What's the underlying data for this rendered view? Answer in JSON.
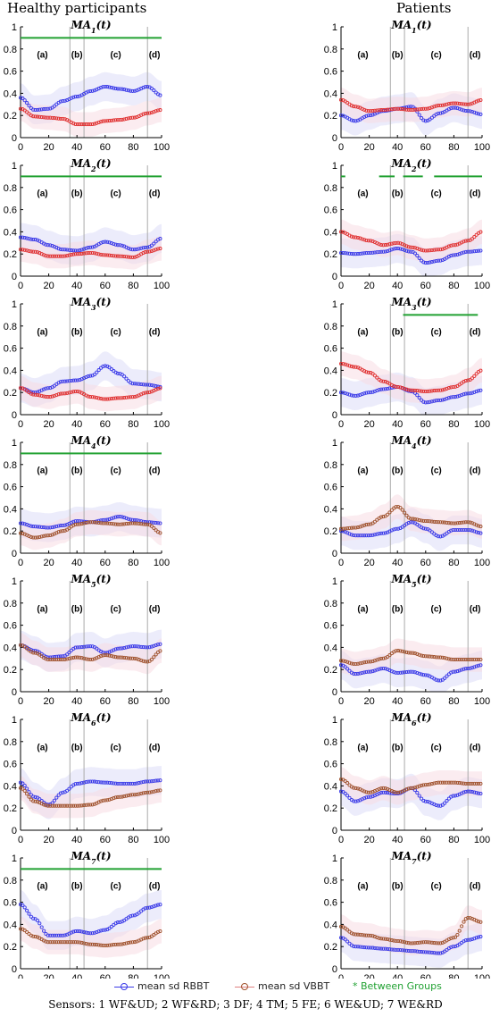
{
  "column_titles": {
    "left": "Healthy participants",
    "right": "Patients"
  },
  "legend": {
    "rbbt": "mean sd RBBT",
    "vbbt": "mean sd VBBT",
    "between": "* Between Groups"
  },
  "sensors_caption": "Sensors: 1 WF&UD; 2 WF&RD; 3 DF; 4 TM; 5 FE; 6 WE&UD; 7 WE&RD",
  "colors": {
    "rbbt": "#3a3ae8",
    "vbbt": "#e03030",
    "vbbt_brown": "#a0522d",
    "between": "#21a132",
    "grid": "#999999",
    "sd_blue": "#dcdcf8",
    "sd_red": "#f8dce4"
  },
  "chart_data": [
    {
      "type": "line",
      "panel": "MA1 healthy",
      "title": "MA",
      "sub": "1",
      "x": [
        0,
        10,
        20,
        30,
        40,
        50,
        60,
        70,
        80,
        90,
        100
      ],
      "xlim": [
        0,
        100
      ],
      "ylim": [
        0,
        1
      ],
      "xticks": [
        "0",
        "20",
        "40",
        "60",
        "80",
        "100"
      ],
      "yticks": [
        "0",
        "0.2",
        "0.4",
        "0.6",
        "0.8",
        "1"
      ],
      "phases": [
        "(a)",
        "(b)",
        "(c)",
        "(d)"
      ],
      "phase_lines": [
        35,
        45,
        90
      ],
      "between": [
        [
          0,
          100
        ]
      ],
      "vbbt_style": "red",
      "series": [
        {
          "name": "RBBT",
          "values": [
            0.36,
            0.25,
            0.26,
            0.33,
            0.37,
            0.42,
            0.46,
            0.44,
            0.42,
            0.46,
            0.38
          ]
        },
        {
          "name": "VBBT",
          "values": [
            0.26,
            0.19,
            0.18,
            0.17,
            0.12,
            0.12,
            0.15,
            0.16,
            0.18,
            0.22,
            0.25
          ]
        }
      ]
    },
    {
      "type": "line",
      "panel": "MA1 patients",
      "title": "MA",
      "sub": "1",
      "x": [
        0,
        10,
        20,
        30,
        40,
        50,
        60,
        70,
        80,
        90,
        100
      ],
      "xlim": [
        0,
        100
      ],
      "ylim": [
        0,
        1
      ],
      "xticks": [
        "0",
        "20",
        "40",
        "60",
        "80",
        "100"
      ],
      "yticks": [
        "0",
        "0.2",
        "0.4",
        "0.6",
        "0.8",
        "1"
      ],
      "phases": [
        "(a)",
        "(b)",
        "(c)",
        "(d)"
      ],
      "phase_lines": [
        35,
        45,
        90
      ],
      "between": [],
      "vbbt_style": "red",
      "series": [
        {
          "name": "RBBT",
          "values": [
            0.2,
            0.15,
            0.2,
            0.24,
            0.26,
            0.28,
            0.15,
            0.22,
            0.27,
            0.24,
            0.21
          ]
        },
        {
          "name": "VBBT",
          "values": [
            0.34,
            0.28,
            0.24,
            0.25,
            0.26,
            0.25,
            0.26,
            0.29,
            0.31,
            0.3,
            0.34
          ]
        }
      ]
    },
    {
      "type": "line",
      "panel": "MA2 healthy",
      "title": "MA",
      "sub": "2",
      "x": [
        0,
        10,
        20,
        30,
        40,
        50,
        60,
        70,
        80,
        90,
        100
      ],
      "xlim": [
        0,
        100
      ],
      "ylim": [
        0,
        1
      ],
      "xticks": [
        "0",
        "20",
        "40",
        "60",
        "80",
        "100"
      ],
      "yticks": [
        "0",
        "0.2",
        "0.4",
        "0.6",
        "0.8",
        "1"
      ],
      "phases": [
        "(a)",
        "(b)",
        "(c)",
        "(d)"
      ],
      "phase_lines": [
        35,
        45,
        90
      ],
      "between": [
        [
          0,
          100
        ]
      ],
      "vbbt_style": "red",
      "series": [
        {
          "name": "RBBT",
          "values": [
            0.35,
            0.33,
            0.28,
            0.24,
            0.23,
            0.26,
            0.31,
            0.28,
            0.24,
            0.26,
            0.34
          ]
        },
        {
          "name": "VBBT",
          "values": [
            0.24,
            0.22,
            0.18,
            0.18,
            0.2,
            0.21,
            0.19,
            0.18,
            0.17,
            0.22,
            0.25
          ]
        }
      ]
    },
    {
      "type": "line",
      "panel": "MA2 patients",
      "title": "MA",
      "sub": "2",
      "x": [
        0,
        10,
        20,
        30,
        40,
        50,
        60,
        70,
        80,
        90,
        100
      ],
      "xlim": [
        0,
        100
      ],
      "ylim": [
        0,
        1
      ],
      "xticks": [
        "0",
        "20",
        "40",
        "60",
        "80",
        "100"
      ],
      "yticks": [
        "0",
        "0.2",
        "0.4",
        "0.6",
        "0.8",
        "1"
      ],
      "phases": [
        "(a)",
        "(b)",
        "(c)",
        "(d)"
      ],
      "phase_lines": [
        35,
        45,
        90
      ],
      "between": [
        [
          0,
          3
        ],
        [
          27,
          38
        ],
        [
          44,
          58
        ],
        [
          66,
          100
        ]
      ],
      "vbbt_style": "red",
      "series": [
        {
          "name": "RBBT",
          "values": [
            0.21,
            0.2,
            0.21,
            0.22,
            0.25,
            0.22,
            0.12,
            0.14,
            0.19,
            0.22,
            0.23
          ]
        },
        {
          "name": "VBBT",
          "values": [
            0.4,
            0.35,
            0.32,
            0.28,
            0.3,
            0.26,
            0.23,
            0.24,
            0.28,
            0.32,
            0.4
          ]
        }
      ]
    },
    {
      "type": "line",
      "panel": "MA3 healthy",
      "title": "MA",
      "sub": "3",
      "x": [
        0,
        10,
        20,
        30,
        40,
        50,
        60,
        70,
        80,
        90,
        100
      ],
      "xlim": [
        0,
        100
      ],
      "ylim": [
        0,
        1
      ],
      "xticks": [
        "0",
        "20",
        "40",
        "60",
        "80",
        "100"
      ],
      "yticks": [
        "0",
        "0.2",
        "0.4",
        "0.6",
        "0.8",
        "1"
      ],
      "phases": [
        "(a)",
        "(b)",
        "(c)",
        "(d)"
      ],
      "phase_lines": [
        35,
        45,
        90
      ],
      "between": [],
      "vbbt_style": "red",
      "series": [
        {
          "name": "RBBT",
          "values": [
            0.24,
            0.2,
            0.24,
            0.3,
            0.31,
            0.35,
            0.44,
            0.37,
            0.28,
            0.27,
            0.25
          ]
        },
        {
          "name": "VBBT",
          "values": [
            0.24,
            0.18,
            0.16,
            0.19,
            0.21,
            0.16,
            0.14,
            0.15,
            0.16,
            0.2,
            0.24
          ]
        }
      ]
    },
    {
      "type": "line",
      "panel": "MA3 patients",
      "title": "MA",
      "sub": "3",
      "x": [
        0,
        10,
        20,
        30,
        40,
        50,
        60,
        70,
        80,
        90,
        100
      ],
      "xlim": [
        0,
        100
      ],
      "ylim": [
        0,
        1
      ],
      "xticks": [
        "0",
        "20",
        "40",
        "60",
        "80",
        "100"
      ],
      "yticks": [
        "0",
        "0.2",
        "0.4",
        "0.6",
        "0.8",
        "1"
      ],
      "phases": [
        "(a)",
        "(b)",
        "(c)",
        "(d)"
      ],
      "phase_lines": [
        35,
        45,
        90
      ],
      "between": [
        [
          44,
          97
        ]
      ],
      "vbbt_style": "red",
      "series": [
        {
          "name": "RBBT",
          "values": [
            0.2,
            0.17,
            0.2,
            0.23,
            0.25,
            0.21,
            0.11,
            0.13,
            0.16,
            0.19,
            0.22
          ]
        },
        {
          "name": "VBBT",
          "values": [
            0.46,
            0.43,
            0.38,
            0.3,
            0.25,
            0.22,
            0.21,
            0.22,
            0.25,
            0.31,
            0.4
          ]
        }
      ]
    },
    {
      "type": "line",
      "panel": "MA4 healthy",
      "title": "MA",
      "sub": "4",
      "x": [
        0,
        10,
        20,
        30,
        40,
        50,
        60,
        70,
        80,
        90,
        100
      ],
      "xlim": [
        0,
        100
      ],
      "ylim": [
        0,
        1
      ],
      "xticks": [
        "0",
        "20",
        "40",
        "60",
        "80",
        "100"
      ],
      "yticks": [
        "0",
        "0.2",
        "0.4",
        "0.6",
        "0.8",
        "1"
      ],
      "phases": [
        "(a)",
        "(b)",
        "(c)",
        "(d)"
      ],
      "phase_lines": [
        35,
        45,
        90
      ],
      "between": [
        [
          0,
          100
        ]
      ],
      "vbbt_style": "brown",
      "series": [
        {
          "name": "RBBT",
          "values": [
            0.27,
            0.24,
            0.23,
            0.25,
            0.29,
            0.28,
            0.3,
            0.33,
            0.3,
            0.28,
            0.27
          ]
        },
        {
          "name": "VBBT",
          "values": [
            0.18,
            0.14,
            0.16,
            0.2,
            0.26,
            0.28,
            0.27,
            0.26,
            0.27,
            0.26,
            0.18
          ]
        }
      ]
    },
    {
      "type": "line",
      "panel": "MA4 patients",
      "title": "MA",
      "sub": "4",
      "x": [
        0,
        10,
        20,
        30,
        40,
        50,
        60,
        70,
        80,
        90,
        100
      ],
      "xlim": [
        0,
        100
      ],
      "ylim": [
        0,
        1
      ],
      "xticks": [
        "0",
        "20",
        "40",
        "60",
        "80",
        "100"
      ],
      "yticks": [
        "0",
        "0.2",
        "0.4",
        "0.6",
        "0.8",
        "1"
      ],
      "phases": [
        "(a)",
        "(b)",
        "(c)",
        "(d)"
      ],
      "phase_lines": [
        35,
        45,
        90
      ],
      "between": [],
      "vbbt_style": "brown",
      "series": [
        {
          "name": "RBBT",
          "values": [
            0.2,
            0.16,
            0.16,
            0.18,
            0.22,
            0.28,
            0.22,
            0.15,
            0.21,
            0.21,
            0.18
          ]
        },
        {
          "name": "VBBT",
          "values": [
            0.22,
            0.23,
            0.26,
            0.33,
            0.42,
            0.31,
            0.29,
            0.28,
            0.27,
            0.28,
            0.24
          ]
        }
      ]
    },
    {
      "type": "line",
      "panel": "MA5 healthy",
      "title": "MA",
      "sub": "5",
      "x": [
        0,
        10,
        20,
        30,
        40,
        50,
        60,
        70,
        80,
        90,
        100
      ],
      "xlim": [
        0,
        100
      ],
      "ylim": [
        0,
        1
      ],
      "xticks": [
        "0",
        "20",
        "40",
        "60",
        "80",
        "100"
      ],
      "yticks": [
        "0",
        "0.2",
        "0.4",
        "0.6",
        "0.8",
        "1"
      ],
      "phases": [
        "(a)",
        "(b)",
        "(c)",
        "(d)"
      ],
      "phase_lines": [
        35,
        45,
        90
      ],
      "between": [],
      "vbbt_style": "brown",
      "series": [
        {
          "name": "RBBT",
          "values": [
            0.42,
            0.37,
            0.31,
            0.32,
            0.4,
            0.41,
            0.35,
            0.39,
            0.41,
            0.4,
            0.43
          ]
        },
        {
          "name": "VBBT",
          "values": [
            0.42,
            0.35,
            0.29,
            0.29,
            0.31,
            0.29,
            0.33,
            0.31,
            0.3,
            0.27,
            0.37
          ]
        }
      ]
    },
    {
      "type": "line",
      "panel": "MA5 patients",
      "title": "MA",
      "sub": "5",
      "x": [
        0,
        10,
        20,
        30,
        40,
        50,
        60,
        70,
        80,
        90,
        100
      ],
      "xlim": [
        0,
        100
      ],
      "ylim": [
        0,
        1
      ],
      "xticks": [
        "0",
        "20",
        "40",
        "60",
        "80",
        "100"
      ],
      "yticks": [
        "0",
        "0.2",
        "0.4",
        "0.6",
        "0.8",
        "1"
      ],
      "phases": [
        "(a)",
        "(b)",
        "(c)",
        "(d)"
      ],
      "phase_lines": [
        35,
        45,
        90
      ],
      "between": [],
      "vbbt_style": "brown",
      "series": [
        {
          "name": "RBBT",
          "values": [
            0.24,
            0.16,
            0.18,
            0.21,
            0.17,
            0.18,
            0.15,
            0.1,
            0.18,
            0.21,
            0.24
          ]
        },
        {
          "name": "VBBT",
          "values": [
            0.28,
            0.25,
            0.27,
            0.3,
            0.37,
            0.35,
            0.32,
            0.31,
            0.29,
            0.29,
            0.29
          ]
        }
      ]
    },
    {
      "type": "line",
      "panel": "MA6 healthy",
      "title": "MA",
      "sub": "6",
      "x": [
        0,
        10,
        20,
        30,
        40,
        50,
        60,
        70,
        80,
        90,
        100
      ],
      "xlim": [
        0,
        100
      ],
      "ylim": [
        0,
        1
      ],
      "xticks": [
        "0",
        "20",
        "40",
        "60",
        "80",
        "100"
      ],
      "yticks": [
        "0",
        "0.2",
        "0.4",
        "0.6",
        "0.8",
        "1"
      ],
      "phases": [
        "(a)",
        "(b)",
        "(c)",
        "(d)"
      ],
      "phase_lines": [
        35,
        45,
        90
      ],
      "between": [],
      "vbbt_style": "brown",
      "series": [
        {
          "name": "RBBT",
          "values": [
            0.43,
            0.3,
            0.23,
            0.34,
            0.42,
            0.44,
            0.43,
            0.42,
            0.42,
            0.44,
            0.45
          ]
        },
        {
          "name": "VBBT",
          "values": [
            0.38,
            0.26,
            0.22,
            0.22,
            0.22,
            0.23,
            0.27,
            0.3,
            0.32,
            0.34,
            0.36
          ]
        }
      ]
    },
    {
      "type": "line",
      "panel": "MA6 patients",
      "title": "MA",
      "sub": "6",
      "x": [
        0,
        10,
        20,
        30,
        40,
        50,
        60,
        70,
        80,
        90,
        100
      ],
      "xlim": [
        0,
        100
      ],
      "ylim": [
        0,
        1
      ],
      "xticks": [
        "0",
        "20",
        "40",
        "60",
        "80",
        "100"
      ],
      "yticks": [
        "0",
        "0.2",
        "0.4",
        "0.6",
        "0.8",
        "1"
      ],
      "phases": [
        "(a)",
        "(b)",
        "(c)",
        "(d)"
      ],
      "phase_lines": [
        35,
        45,
        90
      ],
      "between": [],
      "vbbt_style": "brown",
      "series": [
        {
          "name": "RBBT",
          "values": [
            0.35,
            0.26,
            0.3,
            0.34,
            0.33,
            0.38,
            0.26,
            0.22,
            0.31,
            0.35,
            0.33
          ]
        },
        {
          "name": "VBBT",
          "values": [
            0.46,
            0.38,
            0.34,
            0.38,
            0.34,
            0.38,
            0.41,
            0.43,
            0.43,
            0.42,
            0.42
          ]
        }
      ]
    },
    {
      "type": "line",
      "panel": "MA7 healthy",
      "title": "MA",
      "sub": "7",
      "x": [
        0,
        10,
        20,
        30,
        40,
        50,
        60,
        70,
        80,
        90,
        100
      ],
      "xlim": [
        0,
        100
      ],
      "ylim": [
        0,
        1
      ],
      "xticks": [
        "0",
        "20",
        "40",
        "60",
        "80",
        "100"
      ],
      "yticks": [
        "0",
        "0.2",
        "0.4",
        "0.6",
        "0.8",
        "1"
      ],
      "phases": [
        "(a)",
        "(b)",
        "(c)",
        "(d)"
      ],
      "phase_lines": [
        35,
        45,
        90
      ],
      "between": [
        [
          0,
          100
        ]
      ],
      "vbbt_style": "brown",
      "series": [
        {
          "name": "RBBT",
          "values": [
            0.58,
            0.45,
            0.3,
            0.3,
            0.34,
            0.32,
            0.35,
            0.42,
            0.48,
            0.55,
            0.58
          ]
        },
        {
          "name": "VBBT",
          "values": [
            0.36,
            0.29,
            0.24,
            0.24,
            0.24,
            0.22,
            0.21,
            0.22,
            0.24,
            0.28,
            0.34
          ]
        }
      ]
    },
    {
      "type": "line",
      "panel": "MA7 patients",
      "title": "MA",
      "sub": "7",
      "x": [
        0,
        10,
        20,
        30,
        40,
        50,
        60,
        70,
        80,
        90,
        100
      ],
      "xlim": [
        0,
        100
      ],
      "ylim": [
        0,
        1
      ],
      "xticks": [
        "0",
        "20",
        "40",
        "60",
        "80",
        "100"
      ],
      "yticks": [
        "0",
        "0.2",
        "0.4",
        "0.6",
        "0.8",
        "1"
      ],
      "phases": [
        "(a)",
        "(b)",
        "(c)",
        "(d)"
      ],
      "phase_lines": [
        35,
        45,
        90
      ],
      "between": [],
      "vbbt_style": "brown",
      "series": [
        {
          "name": "RBBT",
          "values": [
            0.28,
            0.2,
            0.19,
            0.18,
            0.17,
            0.16,
            0.15,
            0.14,
            0.2,
            0.26,
            0.29
          ]
        },
        {
          "name": "VBBT",
          "values": [
            0.38,
            0.31,
            0.3,
            0.27,
            0.25,
            0.23,
            0.24,
            0.23,
            0.28,
            0.46,
            0.42
          ]
        }
      ]
    }
  ]
}
